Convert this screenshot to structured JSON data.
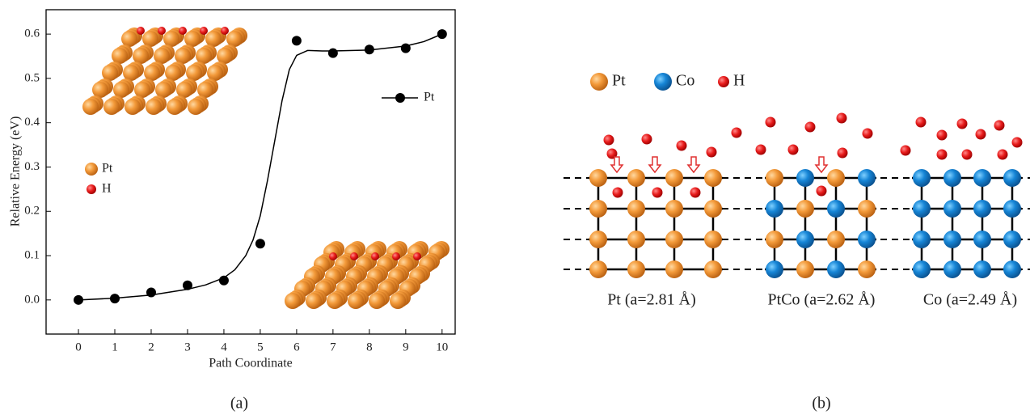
{
  "chart_data": {
    "type": "scatter",
    "x": [
      0,
      1,
      2,
      3,
      4,
      5,
      6,
      7,
      8,
      9,
      10
    ],
    "xlim": [
      -0.89,
      10.36
    ],
    "xticks": [
      0,
      1,
      2,
      3,
      4,
      5,
      6,
      7,
      8,
      9,
      10
    ],
    "ylim": [
      -0.077,
      0.655
    ],
    "yticks": [
      {
        "value": 0,
        "label": "0.0"
      },
      0.1,
      0.2,
      0.3,
      0.4,
      0.5,
      0.6
    ],
    "xlabel": "Path Coordinate",
    "ylabel": "Relative Energy (eV)",
    "series": [
      {
        "name": "Pt",
        "color": "#000000",
        "values": [
          0,
          0.003,
          0.017,
          0.033,
          0.044,
          0.127,
          0.585,
          0.557,
          0.565,
          0.568,
          0.6
        ]
      }
    ],
    "curve": {
      "color": "#000000",
      "x": [
        0,
        1,
        2,
        3,
        3.5,
        4,
        4.3,
        4.6,
        4.8,
        5,
        5.2,
        5.4,
        5.6,
        5.8,
        6,
        6.3,
        6.7,
        7,
        8,
        9,
        9.5,
        10
      ],
      "values": [
        0,
        0.004,
        0.011,
        0.024,
        0.034,
        0.05,
        0.068,
        0.1,
        0.135,
        0.19,
        0.27,
        0.36,
        0.45,
        0.52,
        0.552,
        0.563,
        0.562,
        0.562,
        0.564,
        0.573,
        0.583,
        0.6
      ]
    },
    "legend": "right",
    "inset_legend": [
      "Pt",
      "H"
    ]
  },
  "panel_b": {
    "legend": [
      "Pt",
      "Co",
      "H"
    ],
    "labels": [
      "Pt (a=2.81 Å)",
      "PtCo (a=2.62 Å)",
      "Co (a=2.49 Å)"
    ]
  },
  "captions": [
    "(a)",
    "(b)"
  ]
}
